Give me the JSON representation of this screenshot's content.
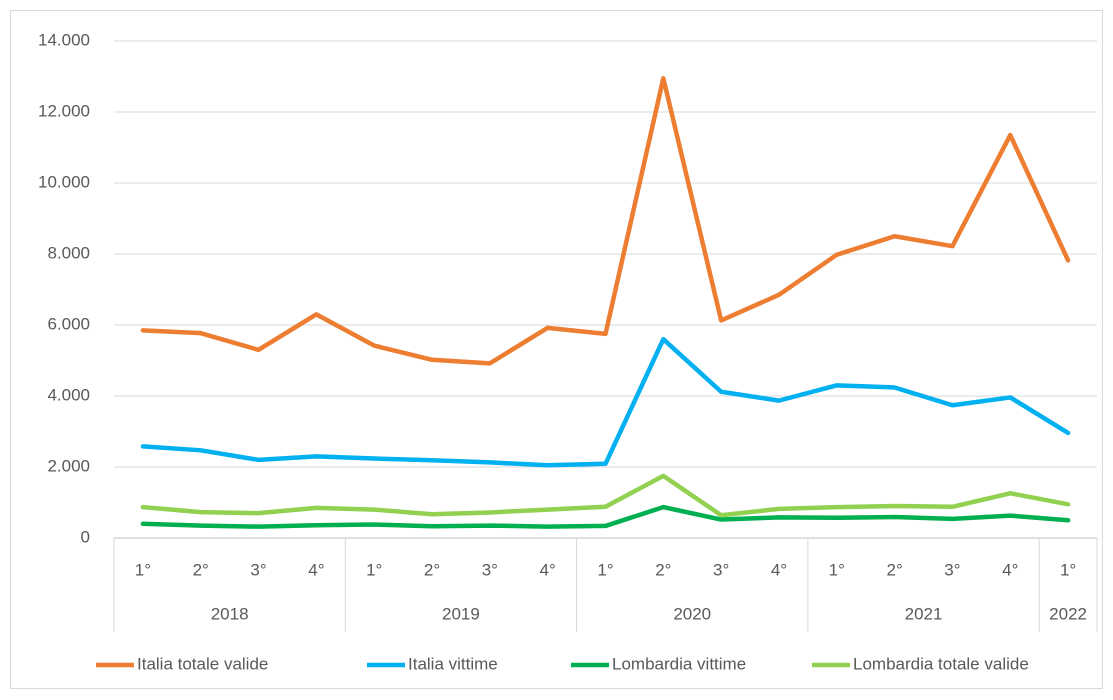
{
  "chart_data": {
    "type": "line",
    "categories": [
      "1°",
      "2°",
      "3°",
      "4°",
      "1°",
      "2°",
      "3°",
      "4°",
      "1°",
      "2°",
      "3°",
      "4°",
      "1°",
      "2°",
      "3°",
      "4°",
      "1°"
    ],
    "groups": [
      {
        "label": "2018",
        "span": 4
      },
      {
        "label": "2019",
        "span": 4
      },
      {
        "label": "2020",
        "span": 4
      },
      {
        "label": "2021",
        "span": 4
      },
      {
        "label": "2022",
        "span": 1
      }
    ],
    "series": [
      {
        "name": "Italia totale valide",
        "color": "#ed7d31",
        "values": [
          5850,
          5770,
          5300,
          6300,
          5420,
          5020,
          4920,
          5920,
          5750,
          12950,
          6130,
          6850,
          7980,
          8500,
          8220,
          11350,
          7820
        ]
      },
      {
        "name": "Italia vittime",
        "color": "#00b0f0",
        "values": [
          2580,
          2470,
          2200,
          2300,
          2240,
          2190,
          2130,
          2050,
          2090,
          5600,
          4120,
          3870,
          4300,
          4240,
          3740,
          3960,
          2960
        ]
      },
      {
        "name": "Lombardia vittime",
        "color": "#00b050",
        "values": [
          400,
          350,
          320,
          360,
          380,
          330,
          350,
          320,
          340,
          870,
          520,
          580,
          570,
          590,
          540,
          630,
          500
        ]
      },
      {
        "name": "Lombardia totale valide",
        "color": "#92d050",
        "values": [
          870,
          730,
          700,
          850,
          800,
          670,
          720,
          800,
          880,
          1750,
          640,
          820,
          870,
          900,
          880,
          1260,
          950
        ]
      }
    ],
    "ylim": [
      0,
      14000
    ],
    "yticks": [
      0,
      {
        "value": 2000,
        "label": "2.000"
      },
      {
        "value": 4000,
        "label": "4.000"
      },
      {
        "value": 6000,
        "label": "6.000"
      },
      {
        "value": 8000,
        "label": "8.000"
      },
      {
        "value": 10000,
        "label": "10.000"
      },
      {
        "value": 12000,
        "label": "12.000"
      },
      {
        "value": 14000,
        "label": "14.000"
      }
    ],
    "grid": true
  }
}
